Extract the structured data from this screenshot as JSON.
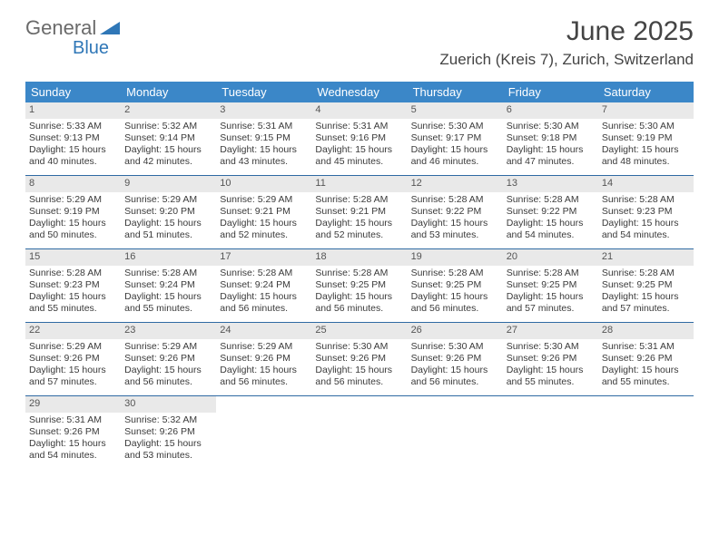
{
  "logo": {
    "text1": "General",
    "text2": "Blue"
  },
  "title": "June 2025",
  "location": "Zuerich (Kreis 7), Zurich, Switzerland",
  "daysOfWeek": [
    "Sunday",
    "Monday",
    "Tuesday",
    "Wednesday",
    "Thursday",
    "Friday",
    "Saturday"
  ],
  "colors": {
    "headerBar": "#3b87c8",
    "rowBorder": "#2f6aa3",
    "dayNumBg": "#e9e9e9",
    "logoGray": "#6a6a6a",
    "logoBlue": "#2f77b7"
  },
  "days": [
    {
      "n": "1",
      "sunrise": "5:33 AM",
      "sunset": "9:13 PM",
      "dlh": "15",
      "dlm": "40"
    },
    {
      "n": "2",
      "sunrise": "5:32 AM",
      "sunset": "9:14 PM",
      "dlh": "15",
      "dlm": "42"
    },
    {
      "n": "3",
      "sunrise": "5:31 AM",
      "sunset": "9:15 PM",
      "dlh": "15",
      "dlm": "43"
    },
    {
      "n": "4",
      "sunrise": "5:31 AM",
      "sunset": "9:16 PM",
      "dlh": "15",
      "dlm": "45"
    },
    {
      "n": "5",
      "sunrise": "5:30 AM",
      "sunset": "9:17 PM",
      "dlh": "15",
      "dlm": "46"
    },
    {
      "n": "6",
      "sunrise": "5:30 AM",
      "sunset": "9:18 PM",
      "dlh": "15",
      "dlm": "47"
    },
    {
      "n": "7",
      "sunrise": "5:30 AM",
      "sunset": "9:19 PM",
      "dlh": "15",
      "dlm": "48"
    },
    {
      "n": "8",
      "sunrise": "5:29 AM",
      "sunset": "9:19 PM",
      "dlh": "15",
      "dlm": "50"
    },
    {
      "n": "9",
      "sunrise": "5:29 AM",
      "sunset": "9:20 PM",
      "dlh": "15",
      "dlm": "51"
    },
    {
      "n": "10",
      "sunrise": "5:29 AM",
      "sunset": "9:21 PM",
      "dlh": "15",
      "dlm": "52"
    },
    {
      "n": "11",
      "sunrise": "5:28 AM",
      "sunset": "9:21 PM",
      "dlh": "15",
      "dlm": "52"
    },
    {
      "n": "12",
      "sunrise": "5:28 AM",
      "sunset": "9:22 PM",
      "dlh": "15",
      "dlm": "53"
    },
    {
      "n": "13",
      "sunrise": "5:28 AM",
      "sunset": "9:22 PM",
      "dlh": "15",
      "dlm": "54"
    },
    {
      "n": "14",
      "sunrise": "5:28 AM",
      "sunset": "9:23 PM",
      "dlh": "15",
      "dlm": "54"
    },
    {
      "n": "15",
      "sunrise": "5:28 AM",
      "sunset": "9:23 PM",
      "dlh": "15",
      "dlm": "55"
    },
    {
      "n": "16",
      "sunrise": "5:28 AM",
      "sunset": "9:24 PM",
      "dlh": "15",
      "dlm": "55"
    },
    {
      "n": "17",
      "sunrise": "5:28 AM",
      "sunset": "9:24 PM",
      "dlh": "15",
      "dlm": "56"
    },
    {
      "n": "18",
      "sunrise": "5:28 AM",
      "sunset": "9:25 PM",
      "dlh": "15",
      "dlm": "56"
    },
    {
      "n": "19",
      "sunrise": "5:28 AM",
      "sunset": "9:25 PM",
      "dlh": "15",
      "dlm": "56"
    },
    {
      "n": "20",
      "sunrise": "5:28 AM",
      "sunset": "9:25 PM",
      "dlh": "15",
      "dlm": "57"
    },
    {
      "n": "21",
      "sunrise": "5:28 AM",
      "sunset": "9:25 PM",
      "dlh": "15",
      "dlm": "57"
    },
    {
      "n": "22",
      "sunrise": "5:29 AM",
      "sunset": "9:26 PM",
      "dlh": "15",
      "dlm": "57"
    },
    {
      "n": "23",
      "sunrise": "5:29 AM",
      "sunset": "9:26 PM",
      "dlh": "15",
      "dlm": "56"
    },
    {
      "n": "24",
      "sunrise": "5:29 AM",
      "sunset": "9:26 PM",
      "dlh": "15",
      "dlm": "56"
    },
    {
      "n": "25",
      "sunrise": "5:30 AM",
      "sunset": "9:26 PM",
      "dlh": "15",
      "dlm": "56"
    },
    {
      "n": "26",
      "sunrise": "5:30 AM",
      "sunset": "9:26 PM",
      "dlh": "15",
      "dlm": "56"
    },
    {
      "n": "27",
      "sunrise": "5:30 AM",
      "sunset": "9:26 PM",
      "dlh": "15",
      "dlm": "55"
    },
    {
      "n": "28",
      "sunrise": "5:31 AM",
      "sunset": "9:26 PM",
      "dlh": "15",
      "dlm": "55"
    },
    {
      "n": "29",
      "sunrise": "5:31 AM",
      "sunset": "9:26 PM",
      "dlh": "15",
      "dlm": "54"
    },
    {
      "n": "30",
      "sunrise": "5:32 AM",
      "sunset": "9:26 PM",
      "dlh": "15",
      "dlm": "53"
    }
  ],
  "labels": {
    "sunrise": "Sunrise:",
    "sunset": "Sunset:",
    "daylight": "Daylight:",
    "hours": "hours",
    "and": "and",
    "minutes": "minutes."
  }
}
